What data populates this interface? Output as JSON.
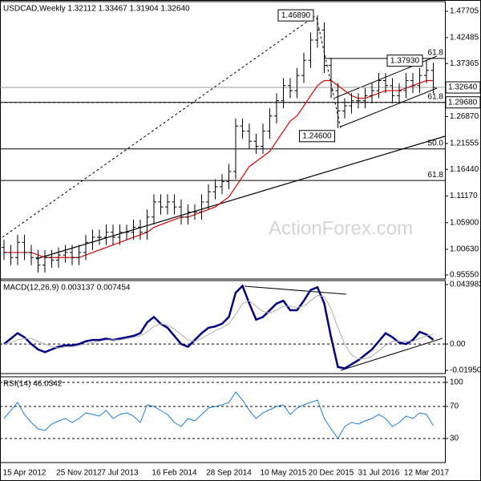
{
  "chart_data": [
    {
      "type": "candlestick",
      "title": "USDCAD,Weekly  1.32112 1.33467 1.31904 1.32640",
      "watermark": "ActionForex.com",
      "color": "#000000",
      "categories": [
        null,
        null,
        null,
        "15 Apr 2012",
        null,
        null,
        null,
        null,
        null,
        null,
        null,
        "25 Nov 2012",
        null,
        null,
        null,
        null,
        null,
        "7 Jul 2013",
        null,
        null,
        null,
        null,
        null,
        null,
        null,
        "16 Feb 2014",
        null,
        null,
        null,
        null,
        null,
        null,
        null,
        "28 Sep 2014",
        null,
        null,
        null,
        null,
        null,
        null,
        null,
        "10 May 2015",
        null,
        null,
        null,
        null,
        null,
        null,
        "20 Dec 2015",
        null,
        null,
        null,
        null,
        null,
        null,
        "31 Jul 2016",
        null,
        null,
        null,
        null,
        null,
        null,
        "12 Mar 2017",
        null
      ],
      "open": [
        1.01,
        1.0,
        0.99,
        1.02,
        1.0,
        0.99,
        0.975,
        0.99,
        0.985,
        0.995,
        1.0,
        0.99,
        1.0,
        1.02,
        1.03,
        1.03,
        1.04,
        1.03,
        1.04,
        1.04,
        1.05,
        1.04,
        1.07,
        1.1,
        1.09,
        1.1,
        1.09,
        1.07,
        1.08,
        1.08,
        1.1,
        1.12,
        1.13,
        1.14,
        1.16,
        1.25,
        1.24,
        1.22,
        1.21,
        1.24,
        1.27,
        1.3,
        1.33,
        1.32,
        1.35,
        1.38,
        1.42,
        1.44,
        1.37,
        1.32,
        1.28,
        1.29,
        1.3,
        1.3,
        1.31,
        1.32,
        1.34,
        1.33,
        1.31,
        1.32,
        1.34,
        1.33,
        1.35,
        1.36
      ],
      "high": [
        1.025,
        1.015,
        1.035,
        1.035,
        1.015,
        1.005,
        1.005,
        1.005,
        1.01,
        1.015,
        1.015,
        1.015,
        1.035,
        1.045,
        1.045,
        1.055,
        1.055,
        1.055,
        1.055,
        1.065,
        1.065,
        1.085,
        1.115,
        1.115,
        1.115,
        1.115,
        1.105,
        1.095,
        1.095,
        1.115,
        1.135,
        1.145,
        1.155,
        1.175,
        1.265,
        1.265,
        1.255,
        1.235,
        1.255,
        1.285,
        1.315,
        1.345,
        1.345,
        1.365,
        1.395,
        1.435,
        1.4689,
        1.455,
        1.385,
        1.335,
        1.305,
        1.315,
        1.315,
        1.325,
        1.335,
        1.355,
        1.355,
        1.345,
        1.335,
        1.355,
        1.355,
        1.365,
        1.3793,
        1.375
      ],
      "low": [
        0.985,
        0.975,
        0.975,
        0.985,
        0.975,
        0.96,
        0.96,
        0.97,
        0.97,
        0.98,
        0.975,
        0.975,
        0.985,
        1.005,
        1.015,
        1.015,
        1.015,
        1.015,
        1.025,
        1.025,
        1.025,
        1.025,
        1.055,
        1.075,
        1.075,
        1.075,
        1.055,
        1.055,
        1.065,
        1.065,
        1.085,
        1.105,
        1.115,
        1.125,
        1.145,
        1.225,
        1.205,
        1.195,
        1.195,
        1.225,
        1.255,
        1.285,
        1.305,
        1.305,
        1.335,
        1.365,
        1.405,
        1.355,
        1.305,
        1.246,
        1.265,
        1.275,
        1.285,
        1.285,
        1.295,
        1.305,
        1.315,
        1.295,
        1.295,
        1.305,
        1.315,
        1.315,
        1.335,
        1.315
      ],
      "close": [
        1.0,
        0.99,
        1.02,
        1.0,
        0.99,
        0.975,
        0.99,
        0.985,
        0.995,
        1.0,
        0.99,
        1.0,
        1.02,
        1.03,
        1.03,
        1.04,
        1.03,
        1.04,
        1.04,
        1.05,
        1.04,
        1.07,
        1.1,
        1.09,
        1.1,
        1.09,
        1.07,
        1.08,
        1.08,
        1.1,
        1.12,
        1.13,
        1.14,
        1.16,
        1.25,
        1.24,
        1.22,
        1.21,
        1.24,
        1.27,
        1.3,
        1.33,
        1.32,
        1.35,
        1.38,
        1.42,
        1.44,
        1.37,
        1.32,
        1.28,
        1.29,
        1.3,
        1.3,
        1.31,
        1.32,
        1.34,
        1.33,
        1.31,
        1.32,
        1.34,
        1.33,
        1.35,
        1.36,
        1.3264
      ],
      "ma": {
        "color": "#e00000",
        "values": [
          1.0,
          1.0,
          1.0,
          1.0,
          1.0,
          0.995,
          0.99,
          0.99,
          0.99,
          0.99,
          0.99,
          0.99,
          0.995,
          1.0,
          1.005,
          1.01,
          1.015,
          1.02,
          1.025,
          1.03,
          1.035,
          1.04,
          1.05,
          1.055,
          1.06,
          1.065,
          1.07,
          1.07,
          1.075,
          1.08,
          1.085,
          1.09,
          1.1,
          1.11,
          1.13,
          1.15,
          1.17,
          1.18,
          1.19,
          1.2,
          1.22,
          1.24,
          1.26,
          1.27,
          1.29,
          1.31,
          1.33,
          1.34,
          1.34,
          1.33,
          1.32,
          1.31,
          1.305,
          1.305,
          1.31,
          1.315,
          1.32,
          1.32,
          1.32,
          1.325,
          1.33,
          1.335,
          1.34,
          1.34
        ]
      },
      "ylim": [
        0.9476,
        1.4961
      ],
      "yticks": [
        {
          "value": 0.9555,
          "label": "0.95550"
        },
        {
          "value": 1.0063,
          "label": "1.00630"
        },
        {
          "value": 1.059,
          "label": "1.05900"
        },
        {
          "value": 1.1117,
          "label": "1.11170"
        },
        {
          "value": 1.1644,
          "label": "1.16440"
        },
        1.21555,
        {
          "value": 1.2687,
          "label": "1.26870"
        },
        1.37365,
        1.42485,
        1.47705
      ],
      "levels": [
        {
          "label": "61.8",
          "value": 1.3838,
          "start": 47
        },
        {
          "label": "61.8",
          "value": 1.2968
        },
        {
          "label": "50.0",
          "value": 1.2048
        },
        {
          "label": "61.8",
          "value": 1.1424
        }
      ],
      "price_labels": [
        {
          "value": 1.3264,
          "label": "1.32640",
          "line_style": "solid"
        },
        {
          "value": 1.2968,
          "label": "1.29680",
          "line_style": "dashed"
        }
      ],
      "annotations": [
        {
          "label": "1.46890",
          "value": 1.4689,
          "x": 46
        },
        {
          "label": "1.37930",
          "value": 1.3793,
          "x": 62
        },
        {
          "label": "1.24600",
          "value": 1.246,
          "x": 49
        }
      ]
    },
    {
      "type": "line",
      "title": "MACD(12,26,9) 0.003137 0.007454",
      "zero_line": true,
      "series": [
        {
          "color": "#000080",
          "width": 2.5,
          "values": [
            0.0,
            0.004,
            0.008,
            0.005,
            0.0,
            -0.004,
            -0.006,
            -0.004,
            -0.002,
            -0.001,
            -0.001,
            0.0,
            0.002,
            0.003,
            0.003,
            0.004,
            0.003,
            0.004,
            0.005,
            0.006,
            0.008,
            0.016,
            0.02,
            0.015,
            0.012,
            0.006,
            0.0,
            -0.002,
            0.003,
            0.008,
            0.012,
            0.013,
            0.015,
            0.02,
            0.038,
            0.043,
            0.03,
            0.018,
            0.02,
            0.025,
            0.03,
            0.032,
            0.025,
            0.025,
            0.032,
            0.04,
            0.042,
            0.03,
            0.005,
            -0.017,
            -0.018,
            -0.015,
            -0.012,
            -0.008,
            -0.004,
            0.002,
            0.008,
            0.005,
            0.001,
            0.0,
            0.003,
            0.009,
            0.007,
            0.003137
          ]
        },
        {
          "color": "#b0b0b0",
          "width": 1,
          "values": [
            0.0,
            0.001,
            0.003,
            0.004,
            0.004,
            0.002,
            0.0,
            -0.002,
            -0.003,
            -0.002,
            -0.002,
            -0.001,
            0.0,
            0.001,
            0.002,
            0.003,
            0.003,
            0.003,
            0.004,
            0.005,
            0.006,
            0.009,
            0.013,
            0.015,
            0.014,
            0.011,
            0.007,
            0.003,
            0.002,
            0.004,
            0.007,
            0.01,
            0.012,
            0.015,
            0.022,
            0.03,
            0.032,
            0.028,
            0.024,
            0.023,
            0.025,
            0.028,
            0.028,
            0.027,
            0.028,
            0.032,
            0.036,
            0.035,
            0.026,
            0.012,
            0.0,
            -0.008,
            -0.011,
            -0.011,
            -0.009,
            -0.005,
            -0.001,
            0.002,
            0.002,
            0.002,
            0.002,
            0.004,
            0.006,
            0.007454
          ]
        }
      ],
      "ylim": [
        -0.02188,
        0.04695
      ],
      "yticks": [
        -0.019501,
        {
          "value": 0,
          "label": "0.00"
        },
        0.043983
      ]
    },
    {
      "type": "line",
      "title": "RSI(14) 46.0342",
      "grid": "dashed",
      "series": [
        {
          "color": "#1e7fd8",
          "width": 1,
          "values": [
            55,
            65,
            75,
            60,
            50,
            42,
            40,
            48,
            52,
            55,
            50,
            55,
            62,
            60,
            58,
            65,
            55,
            60,
            62,
            58,
            50,
            72,
            70,
            65,
            60,
            50,
            45,
            55,
            52,
            60,
            68,
            70,
            72,
            75,
            88,
            78,
            65,
            55,
            62,
            66,
            70,
            72,
            60,
            68,
            72,
            75,
            78,
            55,
            42,
            30,
            45,
            50,
            48,
            52,
            55,
            60,
            55,
            45,
            50,
            58,
            55,
            62,
            60,
            46.0342
          ]
        }
      ],
      "ylim": [
        0,
        107
      ],
      "yticks": [
        30,
        70,
        100
      ]
    }
  ]
}
